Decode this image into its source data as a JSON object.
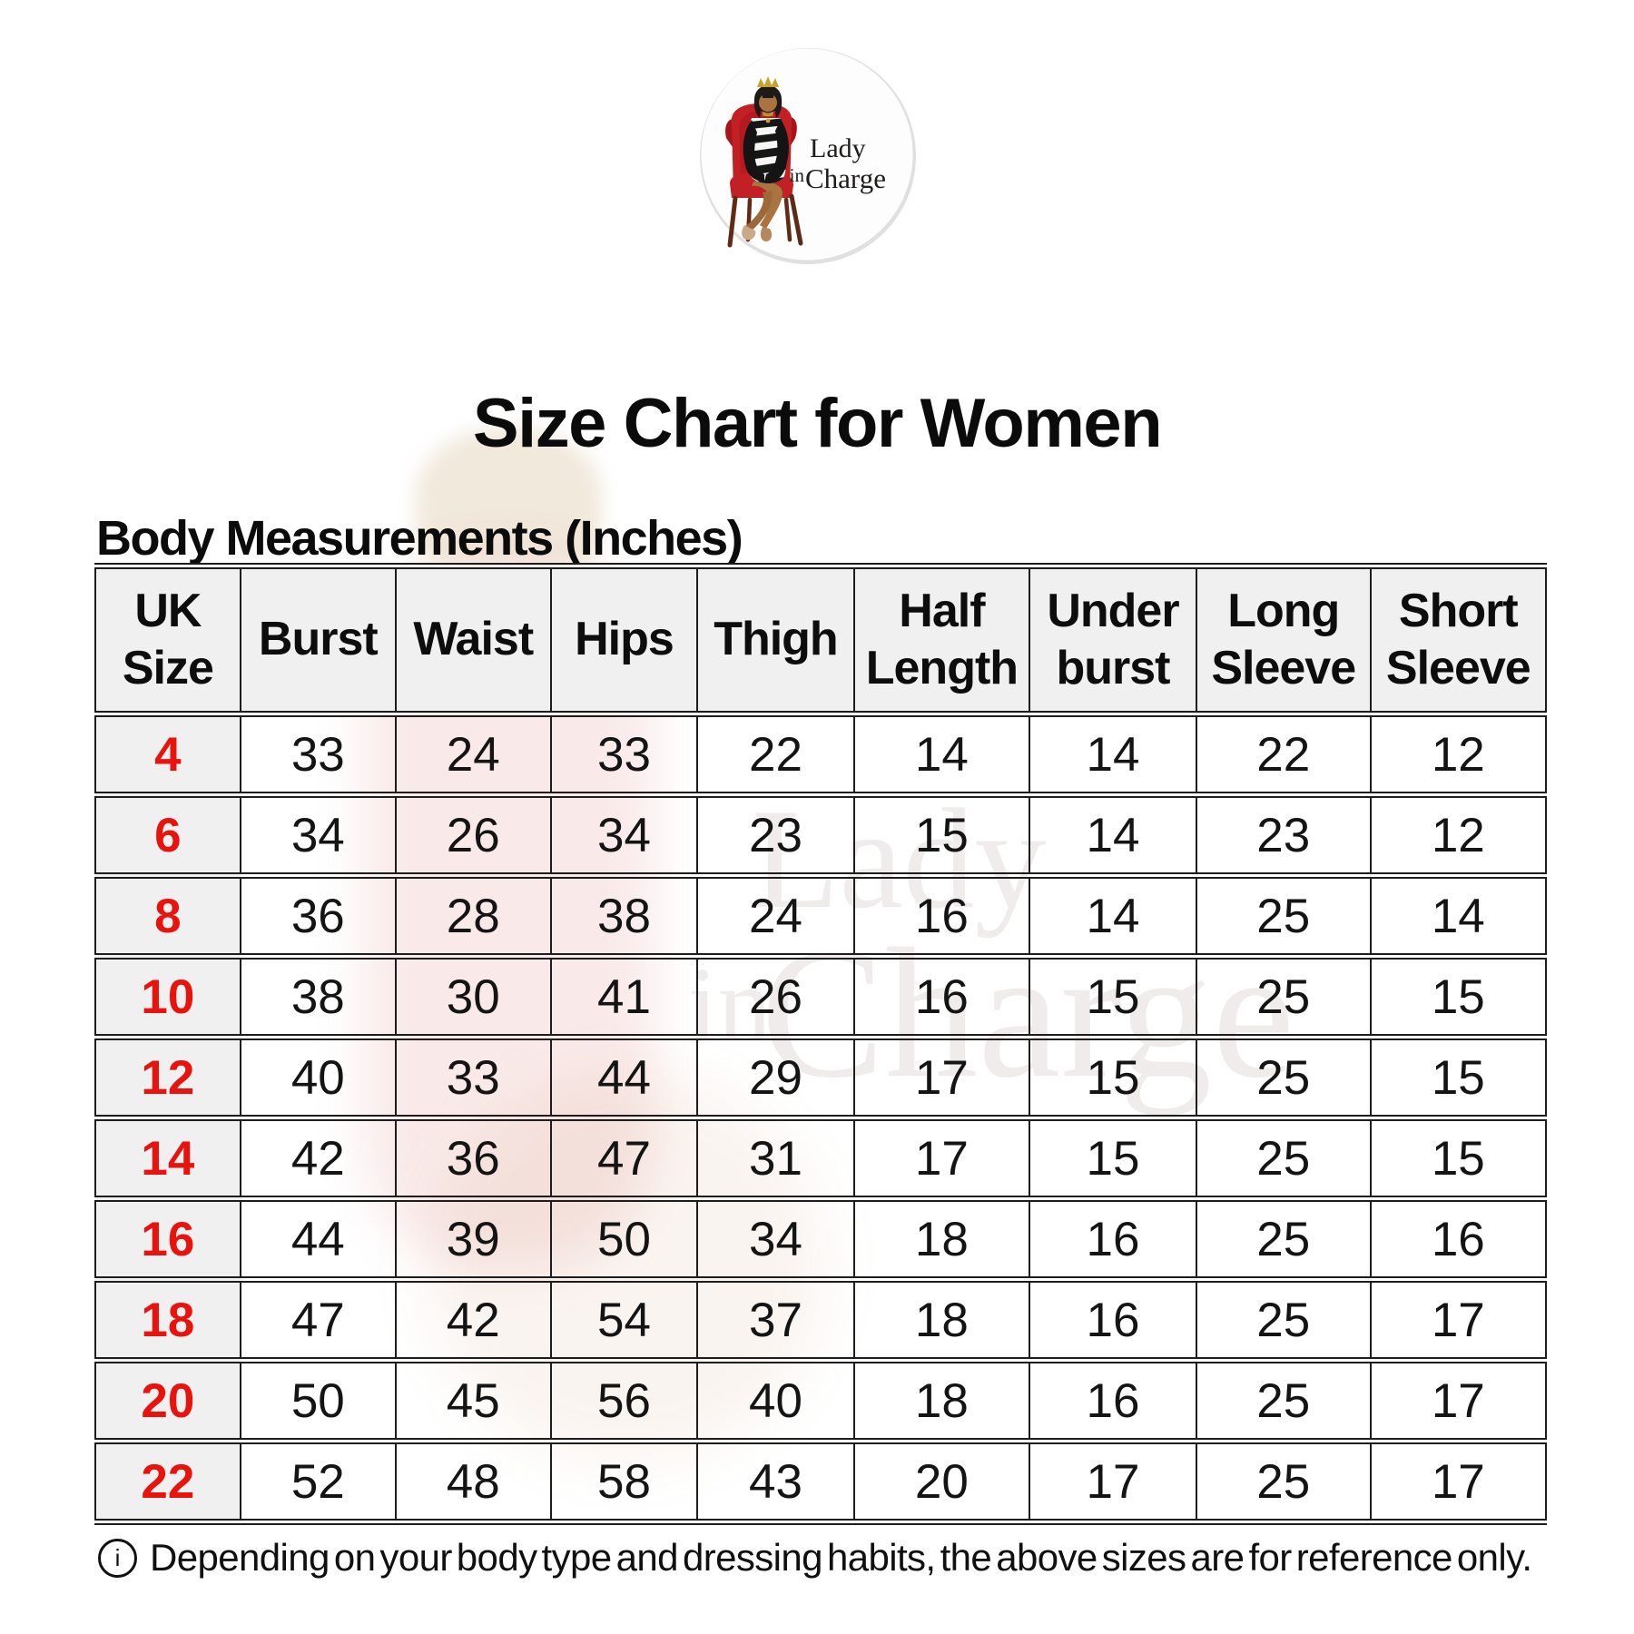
{
  "logo": {
    "brand_line1": "Lady",
    "brand_line2_small": "in",
    "brand_line2": "Charge"
  },
  "title": "Size Chart for Women",
  "subtitle": "Body Measurements (Inches)",
  "table": {
    "columns": [
      "UK Size",
      "Burst",
      "Waist",
      "Hips",
      "Thigh",
      "Half Length",
      "Under burst",
      "Long Sleeve",
      "Short Sleeve"
    ],
    "rows": [
      [
        "4",
        33,
        24,
        33,
        22,
        14,
        14,
        22,
        12
      ],
      [
        "6",
        34,
        26,
        34,
        23,
        15,
        14,
        23,
        12
      ],
      [
        "8",
        36,
        28,
        38,
        24,
        16,
        14,
        25,
        14
      ],
      [
        "10",
        38,
        30,
        41,
        26,
        16,
        15,
        25,
        15
      ],
      [
        "12",
        40,
        33,
        44,
        29,
        17,
        15,
        25,
        15
      ],
      [
        "14",
        42,
        36,
        47,
        31,
        17,
        15,
        25,
        15
      ],
      [
        "16",
        44,
        39,
        50,
        34,
        18,
        16,
        25,
        16
      ],
      [
        "18",
        47,
        42,
        54,
        37,
        18,
        16,
        25,
        17
      ],
      [
        "20",
        50,
        45,
        56,
        40,
        18,
        16,
        25,
        17
      ],
      [
        "22",
        52,
        48,
        58,
        43,
        20,
        17,
        25,
        17
      ]
    ]
  },
  "footnote": {
    "icon_glyph": "i",
    "text": "Depending on your body type and dressing habits, the above sizes are for reference only."
  },
  "watermark": {
    "line1": "Lady",
    "line2_small": "in",
    "line2": "Charge"
  },
  "colors": {
    "size_red": "#e8130d",
    "header_bg": "#f0f0f0",
    "border": "#1d1d1d",
    "chair_red": "#c32026"
  },
  "chart_data": {
    "type": "table",
    "title": "Size Chart for Women",
    "subtitle": "Body Measurements (Inches)",
    "columns": [
      "UK Size",
      "Burst",
      "Waist",
      "Hips",
      "Thigh",
      "Half Length",
      "Under burst",
      "Long Sleeve",
      "Short Sleeve"
    ],
    "rows": [
      [
        4,
        33,
        24,
        33,
        22,
        14,
        14,
        22,
        12
      ],
      [
        6,
        34,
        26,
        34,
        23,
        15,
        14,
        23,
        12
      ],
      [
        8,
        36,
        28,
        38,
        24,
        16,
        14,
        25,
        14
      ],
      [
        10,
        38,
        30,
        41,
        26,
        16,
        15,
        25,
        15
      ],
      [
        12,
        40,
        33,
        44,
        29,
        17,
        15,
        25,
        15
      ],
      [
        14,
        42,
        36,
        47,
        31,
        17,
        15,
        25,
        15
      ],
      [
        16,
        44,
        39,
        50,
        34,
        18,
        16,
        25,
        16
      ],
      [
        18,
        47,
        42,
        54,
        37,
        18,
        16,
        25,
        17
      ],
      [
        20,
        50,
        45,
        56,
        40,
        18,
        16,
        25,
        17
      ],
      [
        22,
        52,
        48,
        58,
        43,
        20,
        17,
        25,
        17
      ]
    ],
    "note": "Depending on your body type and dressing habits, the above sizes are for reference only."
  }
}
